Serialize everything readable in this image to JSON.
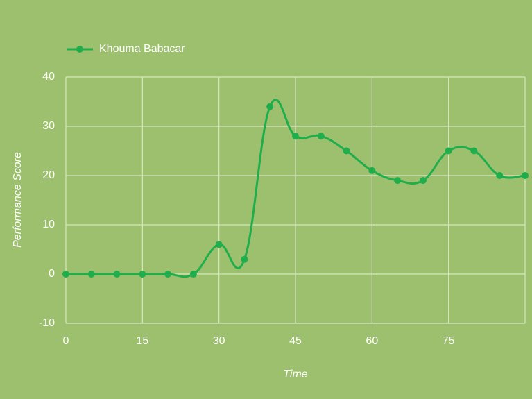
{
  "chart_data": {
    "type": "line",
    "x_label": "Time",
    "y_label": "Performance Score",
    "x": [
      0,
      5,
      10,
      15,
      20,
      25,
      30,
      35,
      40,
      45,
      50,
      55,
      60,
      65,
      70,
      75,
      80,
      85,
      90
    ],
    "series": [
      {
        "name": "Khouma Babacar",
        "color": "#1fae4b",
        "values": [
          0,
          0,
          0,
          0,
          0,
          0,
          6,
          3,
          34,
          28,
          28,
          25,
          21,
          19,
          19,
          25,
          25,
          20,
          20
        ]
      }
    ],
    "xlim": [
      0,
      90
    ],
    "xticks": [
      0,
      15,
      30,
      45,
      60,
      75
    ],
    "ylim": [
      -10,
      40
    ],
    "yticks": [
      -10,
      0,
      10,
      20,
      30,
      40
    ],
    "grid": true,
    "legend": "top-left"
  }
}
